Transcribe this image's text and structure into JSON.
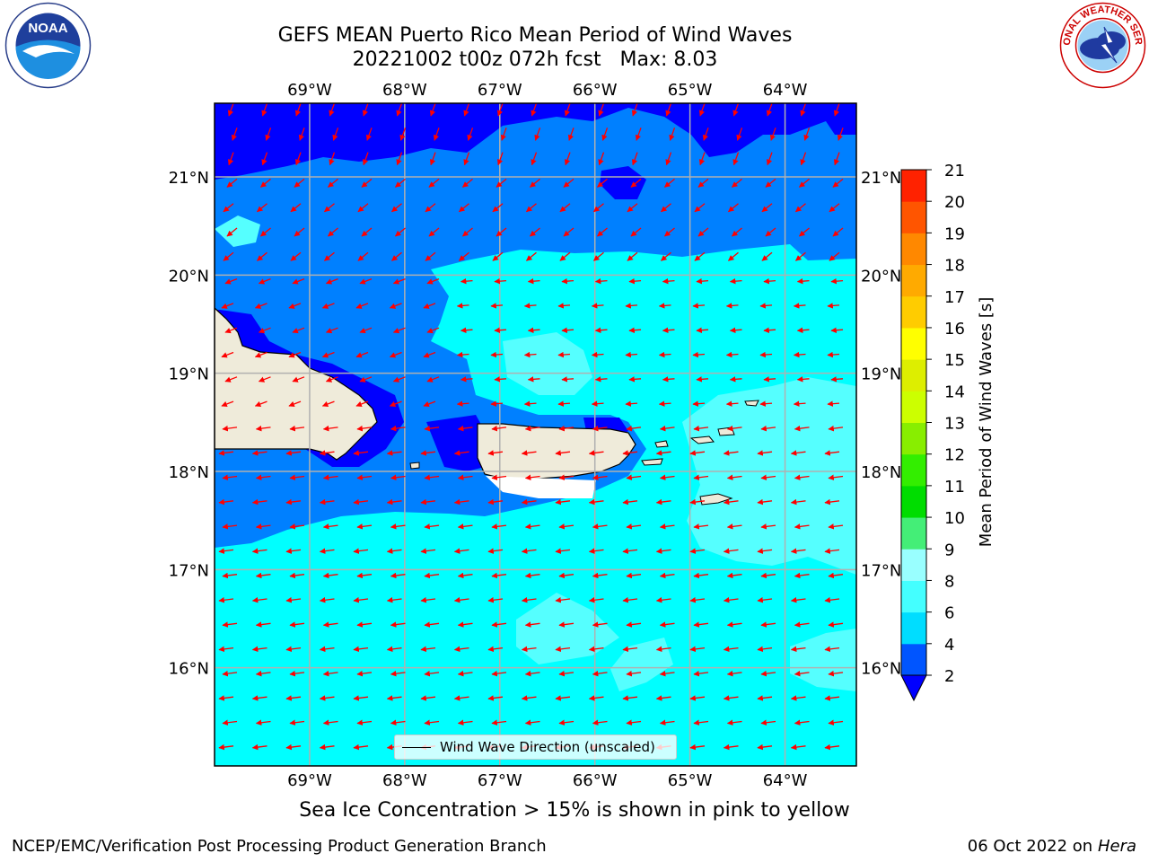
{
  "title": {
    "line1": "GEFS MEAN Puerto Rico Mean Period of Wind Waves",
    "line2": "20221002 t00z 072h fcst   Max: 8.03"
  },
  "logos": {
    "left": {
      "icon": "noaa-logo",
      "text": "NOAA",
      "ring_text": "NATIONAL OCEANIC AND ATMOSPHERIC ADMINISTRATION · U.S. DEPARTMENT OF COMMERCE"
    },
    "right": {
      "icon": "nws-logo",
      "ring_text": "NATIONAL WEATHER SERVICE"
    }
  },
  "map": {
    "lon_labels": [
      "69°W",
      "68°W",
      "67°W",
      "66°W",
      "65°W",
      "64°W"
    ],
    "lat_labels": [
      "21°N",
      "20°N",
      "19°N",
      "18°N",
      "17°N",
      "16°N"
    ],
    "lon_values": [
      -69,
      -68,
      -67,
      -66,
      -65,
      -64
    ],
    "lat_values": [
      21,
      20,
      19,
      18,
      17,
      16
    ],
    "extent": {
      "lon_min": -70.0,
      "lon_max": -63.25,
      "lat_min": 15.0,
      "lat_max": 21.75
    },
    "arrow_color": "#ff0000",
    "land_color": "#efebda",
    "grid_color": "#b0b0b0",
    "legend_label": "Wind Wave Direction (unscaled)"
  },
  "colorbar": {
    "label": "Mean Period of Wind Waves [s]",
    "ticks": [
      "2",
      "4",
      "6",
      "8",
      "9",
      "10",
      "11",
      "12",
      "13",
      "14",
      "15",
      "16",
      "17",
      "18",
      "19",
      "20",
      "21"
    ],
    "colors": [
      "#0055ff",
      "#00ddff",
      "#44ffff",
      "#99ffff",
      "#44ee77",
      "#00dd00",
      "#33ee00",
      "#88ee00",
      "#ccff00",
      "#ddee00",
      "#ffff00",
      "#ffcc00",
      "#ffaa00",
      "#ff8800",
      "#ff5500",
      "#ff2200"
    ],
    "under_color": "#0000ff"
  },
  "chart_data": {
    "type": "heatmap",
    "title": "GEFS MEAN Puerto Rico Mean Period of Wind Waves",
    "subtitle": "20221002 t00z 072h fcst   Max: 8.03",
    "max": 8.03,
    "colorbar_label": "Mean Period of Wind Waves [s]",
    "levels": [
      2,
      4,
      6,
      8,
      9,
      10,
      11,
      12,
      13,
      14,
      15,
      16,
      17,
      18,
      19,
      20,
      21
    ],
    "xlim": [
      -70.0,
      -63.25
    ],
    "ylim": [
      15.0,
      21.75
    ],
    "zones": [
      {
        "region": "north of ~21.2°N",
        "period_range": "<2 s"
      },
      {
        "region": "20.3°N–21.2°N",
        "period_range": "2–4 s"
      },
      {
        "region": "17.5°N–20.3°N",
        "period_range": "4–6 s"
      },
      {
        "region": "south of ~17.5°N",
        "period_range": "4–6 s"
      },
      {
        "region": "east of Virgin Islands / patches",
        "period_range": "6–8 s"
      }
    ]
  },
  "subtitle": "Sea Ice Concentration > 15% is shown in pink to yellow",
  "footer": {
    "left": "NCEP/EMC/Verification Post Processing Product Generation Branch",
    "right_date": "06 Oct 2022 on ",
    "right_host": "Hera"
  }
}
